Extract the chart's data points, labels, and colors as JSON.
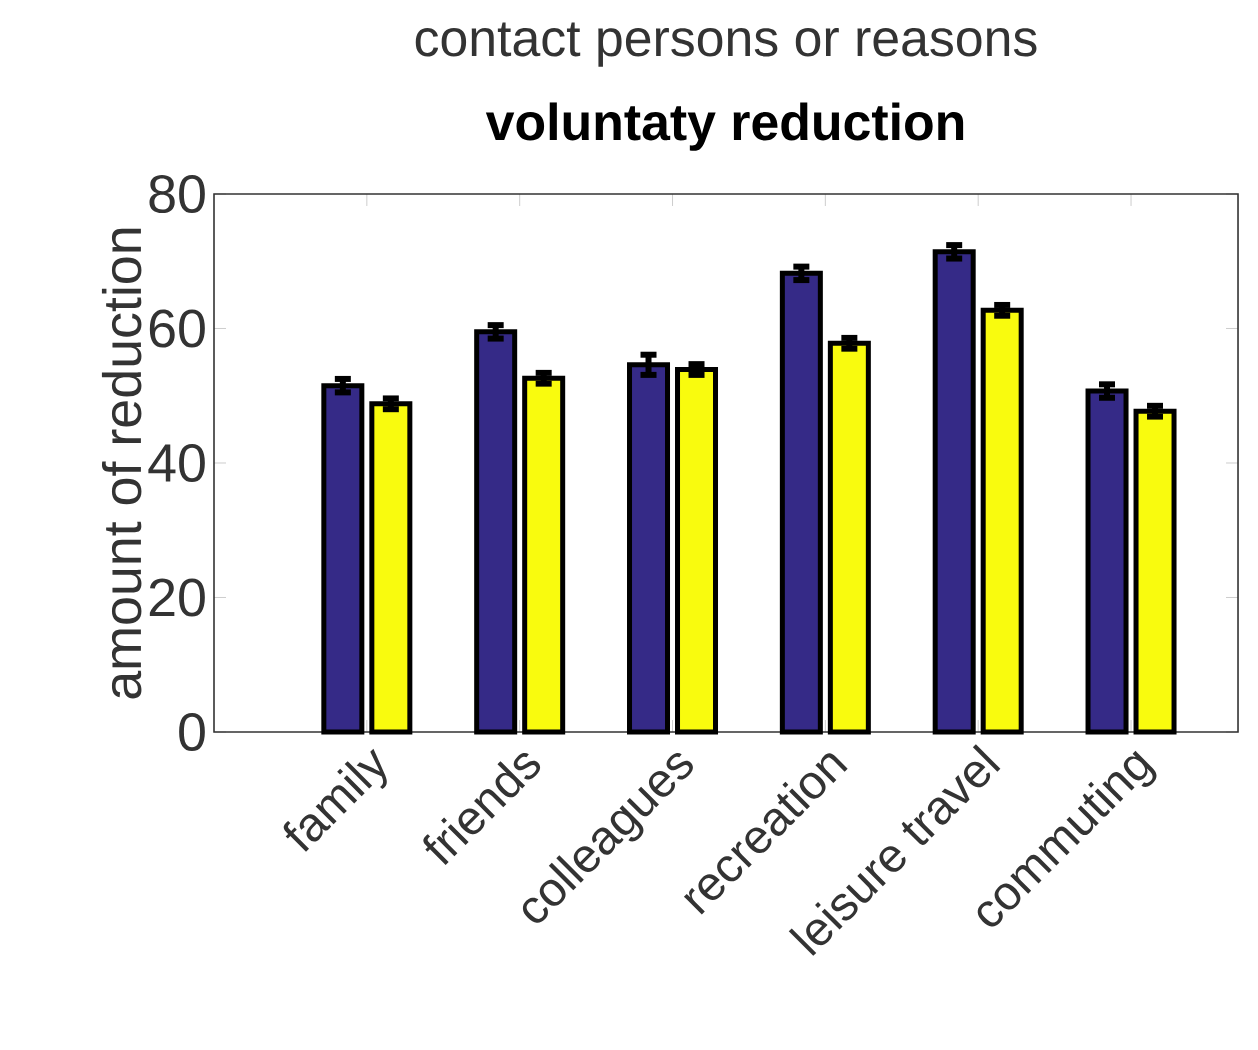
{
  "chart_data": {
    "type": "bar",
    "title": "contact persons or reasons",
    "subtitle": "voluntaty reduction",
    "ylabel": "amount of reduction",
    "categories": [
      "family",
      "friends",
      "colleagues",
      "recreation",
      "leisure travel",
      "commuting"
    ],
    "series": [
      {
        "color": "#352a87",
        "values": [
          51.5,
          59.5,
          54.6,
          68.2,
          71.4,
          50.7
        ],
        "errors": [
          1,
          1,
          1.5,
          1,
          1,
          1
        ]
      },
      {
        "color": "#f9fb0e",
        "values": [
          48.8,
          52.6,
          53.9,
          57.8,
          62.7,
          47.7
        ],
        "errors": [
          0.8,
          0.8,
          0.8,
          0.8,
          0.8,
          0.8
        ]
      }
    ],
    "ylim": [
      0,
      80
    ],
    "yticks": [
      0,
      20,
      40,
      60,
      80
    ]
  }
}
